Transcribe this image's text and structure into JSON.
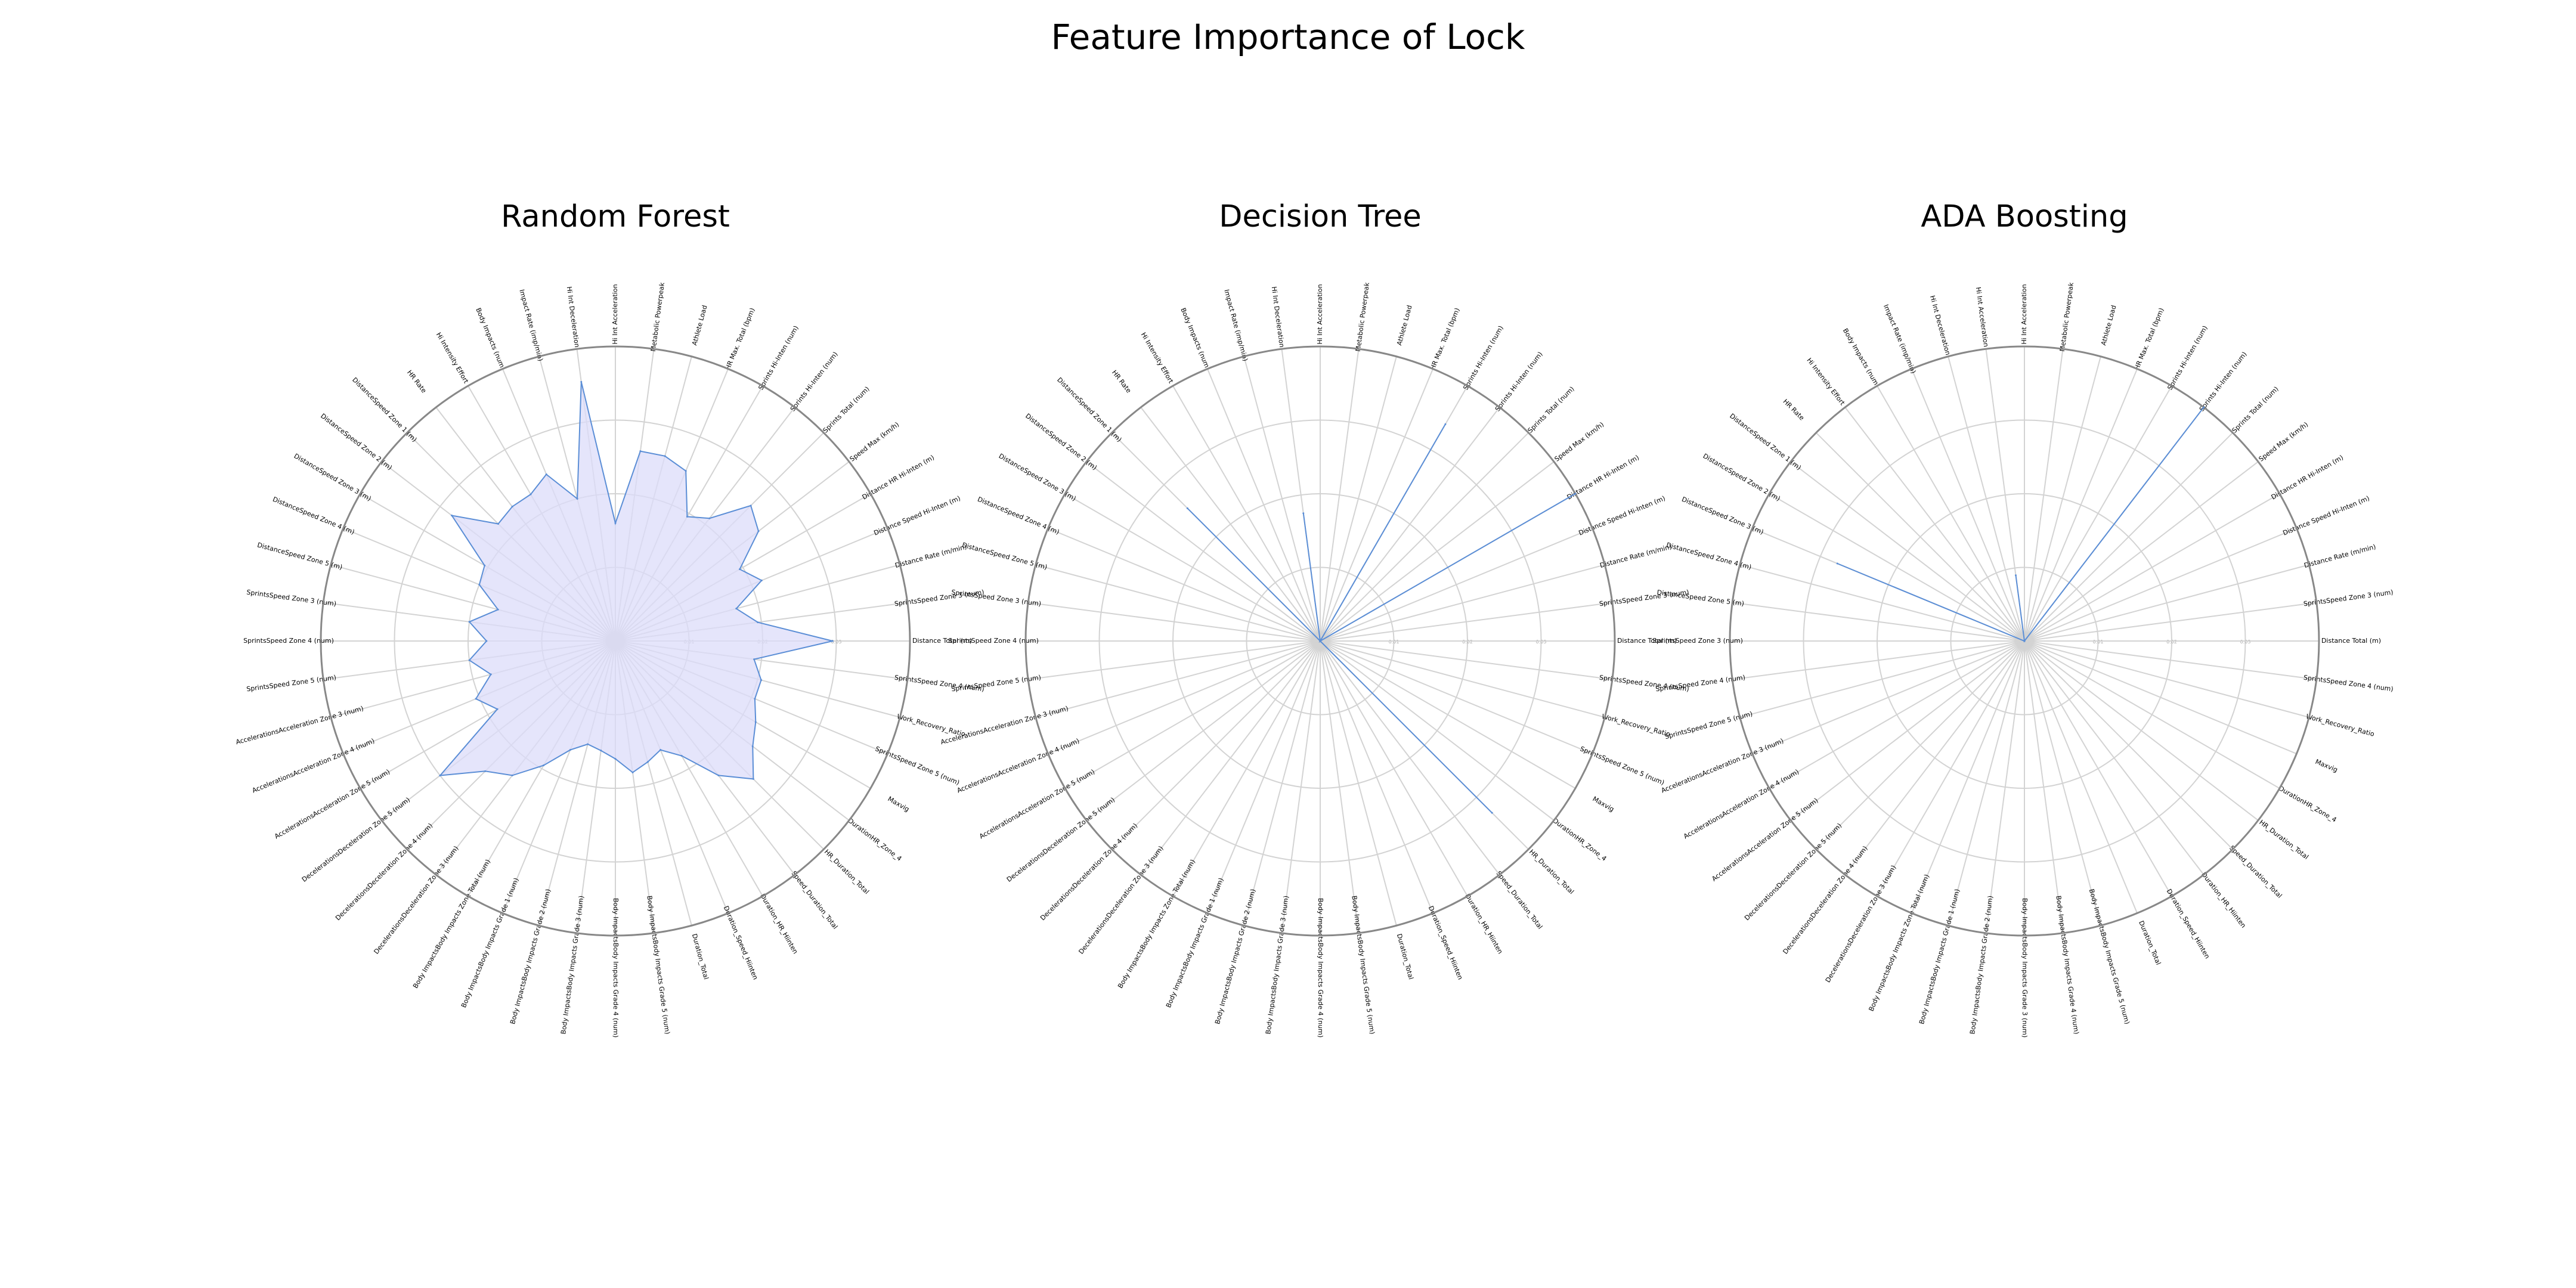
{
  "title": "Feature Importance of Lock",
  "colors": {
    "fill": "#dcdcfa",
    "line": "#5b8ed6",
    "grid": "#d3d3d3",
    "frame": "#888888"
  },
  "chart_data": [
    {
      "type": "radar",
      "title": "Random Forest",
      "grid": true,
      "rmax": 4,
      "rticks": [
        "0.01",
        "0.02",
        "0.03"
      ],
      "categories": [
        "Hi Int Acceleration",
        "Metabolic Powerpeak",
        "Athlete Load",
        "HR Max. Total (bpm)",
        "Sprints Hi-Inten (num)",
        "Sprints Hi-Inten (num)",
        "Sprints Total (num)",
        "Speed Max (km/h)",
        "Distance HR Hi-Inten (m)",
        "Distance Speed Hi-Inten (m)",
        "Distance Rate (m/min)",
        "SprintsSpeed Zone 3 (num)",
        "Distance Total (m)",
        "SprintsSpeed Zone 4 (num)",
        "Work_Recovery_Ratio",
        "SprintsSpeed Zone 5 (num)",
        "Maxvig",
        "DurationHR_Zone_4",
        "HR_Duration_Total",
        "Speed_Duration_Total",
        "Duration_HR_Hiinten",
        "Duration_Speed_Hiinten",
        "Duration_Total",
        "Body ImpactsBody Impacts Grade 5 (num)",
        "Body ImpactsBody Impacts Grade 4 (num)",
        "Body ImpactsBody Impacts Grade 3 (num)",
        "Body ImpactsBody Impacts Grade 2 (num)",
        "Body ImpactsBody Impacts Grade 1 (num)",
        "Body ImpactsBody Impacts Zone Total (num)",
        "DecelerationsDeceleration Zone 3 (num)",
        "DecelerationsDeceleration Zone 4 (num)",
        "DecelerationsDeceleration Zone 5 (num)",
        "AccelerationsAcceleration Zone 5 (num)",
        "AccelerationsAcceleration Zone 4 (num)",
        "AccelerationsAcceleration Zone 3 (num)",
        "SprintsSpeed Zone 5 (num)",
        "SprintsSpeed Zone 4 (num)",
        "SprintsSpeed Zone 3 (num)",
        "DistanceSpeed Zone 5 (m)",
        "DistanceSpeed Zone 4 (m)",
        "DistanceSpeed Zone 3 (m)",
        "DistanceSpeed Zone 2 (m)",
        "DistanceSpeed Zone 1 (m)",
        "HR Rate",
        "Hi Intensity Effort",
        "Body Impacts (num)",
        "Impact Rate (imp/min)",
        "Hi Int Deceleration"
      ],
      "values": [
        1.6,
        2.6,
        2.6,
        2.5,
        1.95,
        2.1,
        2.6,
        2.45,
        1.95,
        2.15,
        1.7,
        1.95,
        2.95,
        1.9,
        2.05,
        2.05,
        2.2,
        2.35,
        2.65,
        2.3,
        1.8,
        1.6,
        1.7,
        1.8,
        1.6,
        1.5,
        1.45,
        1.6,
        1.95,
        2.3,
        2.5,
        3.0,
        1.85,
        2.05,
        1.75,
        2.0,
        1.75,
        2.0,
        1.65,
        2.0,
        2.05,
        2.8,
        2.25,
        2.3,
        2.3,
        2.45,
        2.0,
        3.55
      ]
    },
    {
      "type": "radar",
      "title": "Decision Tree",
      "grid": true,
      "rmax": 4,
      "rticks": [
        "0.01",
        "0.02",
        "0.03"
      ],
      "categories": [
        "Hi Int Acceleration",
        "Metabolic Powerpeak",
        "Athlete Load",
        "HR Max. Total (bpm)",
        "Sprints Hi-Inten (num)",
        "Sprints Hi-Inten (num)",
        "Sprints Total (num)",
        "Speed Max (km/h)",
        "Distance HR Hi-Inten (m)",
        "Distance Speed Hi-Inten (m)",
        "Distance Rate (m/min)",
        "SprintsSpeed Zone 3 (num)",
        "Distance Total (m)",
        "SprintsSpeed Zone 4 (num)",
        "Work_Recovery_Ratio",
        "SprintsSpeed Zone 5 (num)",
        "Maxvig",
        "DurationHR_Zone_4",
        "HR_Duration_Total",
        "Speed_Duration_Total",
        "Duration_HR_Hiinten",
        "Duration_Speed_Hiinten",
        "Duration_Total",
        "Body ImpactsBody Impacts Grade 5 (num)",
        "Body ImpactsBody Impacts Grade 4 (num)",
        "Body ImpactsBody Impacts Grade 3 (num)",
        "Body ImpactsBody Impacts Grade 2 (num)",
        "Body ImpactsBody Impacts Grade 1 (num)",
        "Body ImpactsBody Impacts Zone Total (num)",
        "DecelerationsDeceleration Zone 3 (num)",
        "DecelerationsDeceleration Zone 4 (num)",
        "DecelerationsDeceleration Zone 5 (num)",
        "AccelerationsAcceleration Zone 5 (num)",
        "AccelerationsAcceleration Zone 4 (num)",
        "AccelerationsAcceleration Zone 3 (num)",
        "SprintsSpeed Zone 5 (num)",
        "SprintsSpeed Zone 4 (num)",
        "SprintsSpeed Zone 3 (num)",
        "DistanceSpeed Zone 5 (m)",
        "DistanceSpeed Zone 4 (m)",
        "DistanceSpeed Zone 3 (m)",
        "DistanceSpeed Zone 2 (m)",
        "DistanceSpeed Zone 1 (m)",
        "HR Rate",
        "Hi Intensity Effort",
        "Body Impacts (num)",
        "Impact Rate (imp/min)",
        "Hi Int Deceleration"
      ],
      "values": [
        0,
        0,
        0,
        0,
        3.4,
        0,
        0,
        0,
        4.0,
        0,
        0,
        0,
        0,
        0,
        0,
        0,
        0,
        0,
        3.3,
        0,
        0,
        0,
        0,
        0,
        0,
        0,
        0,
        0,
        0,
        0,
        0,
        0,
        0,
        0,
        0,
        0,
        0,
        0,
        0,
        0,
        0,
        0,
        2.55,
        0,
        0,
        0,
        0,
        1.75
      ]
    },
    {
      "type": "radar",
      "title": "ADA Boosting",
      "grid": true,
      "rmax": 4,
      "rticks": [
        "0.01",
        "0.02",
        "0.03"
      ],
      "categories": [
        "Hi Int Acceleration",
        "Metabolic Powerpeak",
        "Athlete Load",
        "HR Max. Total (bpm)",
        "Sprints Hi-Inten (num)",
        "Sprints Hi-Inten (num)",
        "Sprints Total (num)",
        "Speed Max (km/h)",
        "Distance HR Hi-Inten (m)",
        "Distance Speed Hi-Inten (m)",
        "Distance Rate (m/min)",
        "SprintsSpeed Zone 3 (num)",
        "Distance Total (m)",
        "SprintsSpeed Zone 4 (num)",
        "Work_Recovery_Ratio",
        "Maxvig",
        "DurationHR_Zone_4",
        "HR_Duration_Total",
        "Speed_Duration_Total",
        "Duration_HR_Hiinten",
        "Duration_Speed_Hiinten",
        "Duration_Total",
        "Body ImpactsBody Impacts Grade 5 (num)",
        "Body ImpactsBody Impacts Grade 4 (num)",
        "Body ImpactsBody Impacts Grade 3 (num)",
        "Body ImpactsBody Impacts Grade 2 (num)",
        "Body ImpactsBody Impacts Grade 1 (num)",
        "Body ImpactsBody Impacts Zone Total (num)",
        "DecelerationsDeceleration Zone 3 (num)",
        "DecelerationsDeceleration Zone 4 (num)",
        "DecelerationsDeceleration Zone 5 (num)",
        "AccelerationsAcceleration Zone 5 (num)",
        "AccelerationsAcceleration Zone 4 (num)",
        "AccelerationsAcceleration Zone 3 (num)",
        "SprintsSpeed Zone 5 (num)",
        "SprintsSpeed Zone 4 (num)",
        "SprintsSpeed Zone 3 (num)",
        "DistanceSpeed Zone 5 (m)",
        "DistanceSpeed Zone 4 (m)",
        "DistanceSpeed Zone 3 (m)",
        "DistanceSpeed Zone 2 (m)",
        "DistanceSpeed Zone 1 (m)",
        "HR Rate",
        "Hi Intensity Effort",
        "Body Impacts (num)",
        "Impact Rate (imp/min)",
        "Hi Int Deceleration",
        "Hi Int Acceleration"
      ],
      "values": [
        0,
        0,
        0,
        0,
        0,
        4.0,
        0,
        0,
        0,
        0,
        0,
        0,
        0,
        0,
        0,
        0,
        0,
        0,
        0,
        0,
        0,
        0,
        0,
        0,
        0,
        0,
        0,
        0,
        0,
        0,
        0,
        0,
        0,
        0,
        0,
        0,
        0,
        0,
        0,
        2.75,
        0,
        0,
        0,
        0,
        0,
        0,
        0,
        0.9
      ]
    }
  ]
}
